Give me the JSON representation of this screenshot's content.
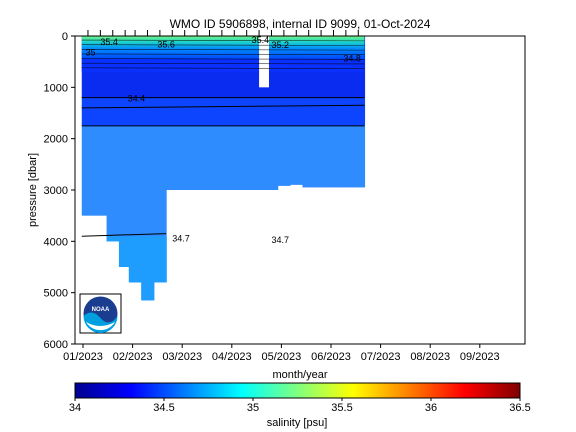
{
  "chart_data": {
    "type": "heatmap",
    "title": "WMO ID 5906898, internal ID 9099, 01-Oct-2024",
    "xlabel": "month/year",
    "ylabel": "pressure [dbar]",
    "x_ticks": [
      "01/2023",
      "02/2023",
      "03/2023",
      "04/2023",
      "05/2023",
      "06/2023",
      "07/2023",
      "08/2023",
      "09/2023"
    ],
    "y_ticks": [
      "0",
      "1000",
      "2000",
      "3000",
      "4000",
      "5000",
      "6000"
    ],
    "ylim": [
      6000,
      0
    ],
    "colorbar": {
      "label": "salinity [psu]",
      "range": [
        34,
        36.5
      ],
      "ticks": [
        "34",
        "34.5",
        "35",
        "35.5",
        "36",
        "36.5"
      ]
    },
    "profiles": [
      {
        "x": 0.1,
        "max_p": 3500
      },
      {
        "x": 0.35,
        "max_p": 3500
      },
      {
        "x": 0.6,
        "max_p": 4000
      },
      {
        "x": 0.85,
        "max_p": 4500
      },
      {
        "x": 1.05,
        "max_p": 4800
      },
      {
        "x": 1.3,
        "max_p": 5150
      },
      {
        "x": 1.55,
        "max_p": 4800
      },
      {
        "x": 1.8,
        "max_p": 3000
      },
      {
        "x": 2.05,
        "max_p": 3000
      },
      {
        "x": 2.3,
        "max_p": 3000
      },
      {
        "x": 2.55,
        "max_p": 3000
      },
      {
        "x": 2.8,
        "max_p": 3000
      },
      {
        "x": 3.05,
        "max_p": 3000
      },
      {
        "x": 3.3,
        "max_p": 3000
      },
      {
        "x": 3.55,
        "max_p": 3000
      },
      {
        "x": 3.8,
        "max_p": 3000
      },
      {
        "x": 4.05,
        "max_p": 2920
      },
      {
        "x": 4.3,
        "max_p": 2900
      },
      {
        "x": 4.55,
        "max_p": 2950
      },
      {
        "x": 4.8,
        "max_p": 2950
      },
      {
        "x": 5.05,
        "max_p": 2950
      },
      {
        "x": 5.3,
        "max_p": 2950
      },
      {
        "x": 5.55,
        "max_p": 2950
      }
    ],
    "surface_gaps": [
      {
        "x_start": 3.55,
        "x_end": 3.75,
        "max_p": 1000
      }
    ],
    "contour_labels": [
      "35",
      "35.4",
      "35.6",
      "35.4",
      "35.2",
      "34.8",
      "34.4",
      "34.7",
      "34.7"
    ],
    "contours": [
      {
        "p_start": 1200,
        "p_end": 1200,
        "x_end": 5.55
      },
      {
        "p_start": 1400,
        "p_end": 1350,
        "x_end": 5.55
      },
      {
        "p_start": 1750,
        "p_end": 1750,
        "x_end": 5.55
      },
      {
        "p_start": 3900,
        "p_end": 3850,
        "x_end": 1.55
      }
    ]
  },
  "logo": {
    "text": "NOAA"
  }
}
